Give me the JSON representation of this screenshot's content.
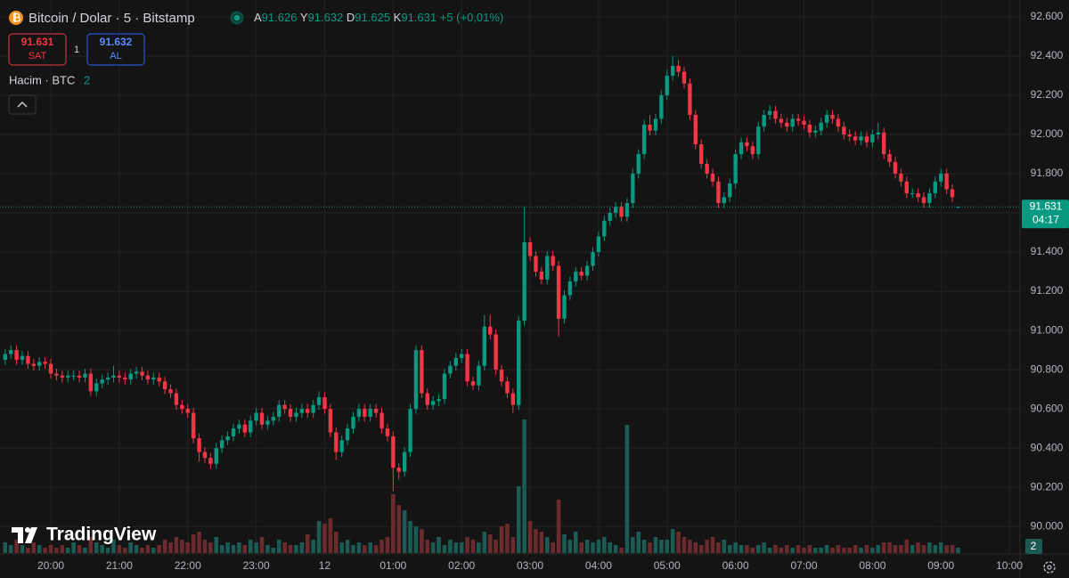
{
  "header": {
    "symbol": "Bitcoin / Dolar · 5 · Bitstamp",
    "ohlc": [
      {
        "key": "A",
        "value": "91.626"
      },
      {
        "key": "Y",
        "value": "91.632"
      },
      {
        "key": "D",
        "value": "91.625"
      },
      {
        "key": "K",
        "value": "91.631"
      }
    ],
    "change": "+5 (+0,01%)"
  },
  "trade": {
    "sell_price": "91.631",
    "sell_label": "SAT",
    "quantity": "1",
    "buy_price": "91.632",
    "buy_label": "AL"
  },
  "volume_label": "Hacim · BTC",
  "logo": "TradingView",
  "chart_data": {
    "type": "candlestick",
    "categories": [
      null,
      null,
      null,
      null,
      null,
      null,
      null,
      null,
      "20:00",
      null,
      null,
      null,
      null,
      null,
      null,
      null,
      null,
      null,
      null,
      null,
      "21:00",
      null,
      null,
      null,
      null,
      null,
      null,
      null,
      null,
      null,
      null,
      null,
      "22:00",
      null,
      null,
      null,
      null,
      null,
      null,
      null,
      null,
      null,
      null,
      null,
      "23:00",
      null,
      null,
      null,
      null,
      null,
      null,
      null,
      null,
      null,
      null,
      null,
      "12",
      null,
      null,
      null,
      null,
      null,
      null,
      null,
      null,
      null,
      null,
      null,
      "01:00",
      null,
      null,
      null,
      null,
      null,
      null,
      null,
      null,
      null,
      null,
      null,
      "02:00",
      null,
      null,
      null,
      null,
      null,
      null,
      null,
      null,
      null,
      null,
      null,
      "03:00",
      null,
      null,
      null,
      null,
      null,
      null,
      null,
      null,
      null,
      null,
      null,
      "04:00",
      null,
      null,
      null,
      null,
      null,
      null,
      null,
      null,
      null,
      null,
      null,
      "05:00",
      null,
      null,
      null,
      null,
      null,
      null,
      null,
      null,
      null,
      null,
      null,
      "06:00",
      null,
      null,
      null,
      null,
      null,
      null,
      null,
      null,
      null,
      null,
      null,
      "07:00",
      null,
      null,
      null,
      null,
      null,
      null,
      null,
      null,
      null,
      null,
      null,
      "08:00",
      null,
      null,
      null,
      null,
      null,
      null,
      null,
      null,
      null,
      null,
      null,
      "09:00",
      null,
      null,
      null,
      null,
      null,
      null,
      null,
      null,
      null,
      null,
      null,
      "10:00"
    ],
    "open": [
      90850,
      90880,
      90900,
      90850,
      90870,
      90830,
      90820,
      90840,
      90830,
      90780,
      90770,
      90760,
      90770,
      90770,
      90760,
      90780,
      90690,
      90730,
      90750,
      90760,
      90770,
      90760,
      90750,
      90780,
      90790,
      90770,
      90750,
      90760,
      90740,
      90700,
      90680,
      90620,
      90600,
      90580,
      90450,
      90380,
      90350,
      90320,
      90400,
      90440,
      90460,
      90500,
      90520,
      90480,
      90540,
      90580,
      90520,
      90540,
      90560,
      90620,
      90600,
      90560,
      90580,
      90600,
      90580,
      90620,
      90660,
      90600,
      90480,
      90380,
      90440,
      90500,
      90560,
      90600,
      90560,
      90600,
      90580,
      90500,
      90460,
      90300,
      90280,
      90380,
      90600,
      90900,
      90680,
      90620,
      90640,
      90650,
      90780,
      90820,
      90860,
      90880,
      90740,
      90720,
      90820,
      91020,
      90980,
      90800,
      90740,
      90680,
      90620,
      91050,
      91450,
      91380,
      91300,
      91260,
      91380,
      91330,
      91060,
      91180,
      91250,
      91300,
      91280,
      91330,
      91400,
      91480,
      91560,
      91600,
      91630,
      91580,
      91650,
      91800,
      91900,
      92050,
      92020,
      92080,
      92200,
      92300,
      92350,
      92320,
      92260,
      92100,
      91950,
      91850,
      91800,
      91760,
      91650,
      91680,
      91750,
      91900,
      91960,
      91940,
      91900,
      92040,
      92100,
      92120,
      92080,
      92060,
      92040,
      92080,
      92070,
      92050,
      92010,
      92020,
      92060,
      92100,
      92080,
      92040,
      92000,
      91990,
      91970,
      91990,
      91960,
      92000,
      92010,
      91900,
      91860,
      91800,
      91760,
      91700,
      91700,
      91680,
      91650,
      91700,
      91760,
      91800,
      91720,
      91626,
      null,
      null,
      null,
      null,
      null,
      null,
      null,
      null,
      null
    ],
    "high": [
      90905,
      90925,
      90925,
      90895,
      90895,
      90855,
      90865,
      90865,
      90855,
      90805,
      90795,
      90795,
      90795,
      90795,
      90805,
      90805,
      90755,
      90775,
      90785,
      90820,
      90795,
      90785,
      90805,
      90815,
      90815,
      90795,
      90785,
      90785,
      90765,
      90725,
      90705,
      90645,
      90625,
      90605,
      90475,
      90405,
      90375,
      90425,
      90465,
      90485,
      90525,
      90545,
      90545,
      90565,
      90605,
      90605,
      90565,
      90585,
      90645,
      90645,
      90625,
      90605,
      90625,
      90625,
      90645,
      90690,
      90685,
      90625,
      90505,
      90465,
      90525,
      90585,
      90625,
      90625,
      90625,
      90625,
      90605,
      90525,
      90485,
      90325,
      90405,
      90625,
      90925,
      90925,
      90705,
      90665,
      90675,
      90805,
      90845,
      90885,
      90905,
      90905,
      90765,
      90845,
      91080,
      91080,
      91005,
      90825,
      90765,
      90705,
      91075,
      91630,
      91475,
      91405,
      91325,
      91405,
      91405,
      91355,
      91205,
      91275,
      91325,
      91325,
      91355,
      91425,
      91505,
      91585,
      91625,
      91655,
      91655,
      91675,
      91825,
      91925,
      92075,
      92100,
      92105,
      92225,
      92330,
      92400,
      92380,
      92345,
      92285,
      92125,
      91975,
      91875,
      91825,
      91785,
      91705,
      91775,
      91925,
      91985,
      91985,
      91965,
      92065,
      92125,
      92150,
      92145,
      92105,
      92085,
      92105,
      92105,
      92095,
      92075,
      92045,
      92085,
      92125,
      92125,
      92105,
      92065,
      92025,
      92015,
      92015,
      92015,
      92025,
      92060,
      92035,
      91925,
      91885,
      91825,
      91785,
      91725,
      91725,
      91705,
      91725,
      91785,
      91825,
      91825,
      91745,
      91632,
      null,
      null,
      null,
      null,
      null,
      null,
      null,
      null,
      null
    ],
    "low": [
      90825,
      90855,
      90825,
      90825,
      90805,
      90795,
      90795,
      90805,
      90755,
      90745,
      90735,
      90735,
      90745,
      90735,
      90735,
      90665,
      90665,
      90705,
      90725,
      90735,
      90735,
      90725,
      90725,
      90755,
      90745,
      90725,
      90725,
      90715,
      90675,
      90655,
      90595,
      90575,
      90555,
      90425,
      90330,
      90325,
      90295,
      90295,
      90375,
      90415,
      90435,
      90475,
      90455,
      90455,
      90515,
      90495,
      90495,
      90515,
      90535,
      90575,
      90535,
      90535,
      90555,
      90555,
      90555,
      90595,
      90575,
      90455,
      90340,
      90355,
      90415,
      90475,
      90535,
      90535,
      90535,
      90555,
      90475,
      90435,
      90180,
      90240,
      90255,
      90355,
      90575,
      90655,
      90595,
      90595,
      90615,
      90625,
      90755,
      90795,
      90835,
      90715,
      90695,
      90695,
      90795,
      90955,
      90775,
      90715,
      90655,
      90580,
      90595,
      91025,
      91355,
      91275,
      91235,
      91235,
      91305,
      90970,
      91035,
      91155,
      91225,
      91255,
      91255,
      91305,
      91375,
      91455,
      91535,
      91575,
      91555,
      91555,
      91625,
      91775,
      91875,
      91995,
      91995,
      92055,
      92175,
      92275,
      92295,
      92235,
      92075,
      91925,
      91825,
      91775,
      91735,
      91625,
      91625,
      91655,
      91725,
      91875,
      91915,
      91875,
      91875,
      92015,
      92075,
      92055,
      92035,
      92015,
      92015,
      92045,
      92025,
      91985,
      91985,
      91995,
      92035,
      92055,
      92015,
      91975,
      91965,
      91945,
      91945,
      91935,
      91935,
      91975,
      91875,
      91835,
      91775,
      91735,
      91675,
      91675,
      91655,
      91625,
      91625,
      91675,
      91735,
      91695,
      91655,
      91625,
      null,
      null,
      null,
      null,
      null,
      null,
      null,
      null,
      null
    ],
    "close": [
      90880,
      90900,
      90850,
      90870,
      90830,
      90820,
      90840,
      90830,
      90780,
      90770,
      90760,
      90770,
      90770,
      90760,
      90780,
      90690,
      90730,
      90750,
      90760,
      90770,
      90760,
      90750,
      90780,
      90790,
      90770,
      90750,
      90760,
      90740,
      90700,
      90680,
      90620,
      90600,
      90580,
      90450,
      90380,
      90350,
      90320,
      90400,
      90440,
      90460,
      90500,
      90520,
      90480,
      90540,
      90580,
      90520,
      90540,
      90560,
      90620,
      90600,
      90560,
      90580,
      90600,
      90580,
      90620,
      90660,
      90600,
      90480,
      90380,
      90440,
      90500,
      90560,
      90600,
      90560,
      90600,
      90580,
      90500,
      90460,
      90300,
      90280,
      90380,
      90600,
      90900,
      90680,
      90620,
      90640,
      90650,
      90780,
      90820,
      90860,
      90880,
      90740,
      90720,
      90820,
      91020,
      90980,
      90800,
      90740,
      90680,
      90620,
      91050,
      91450,
      91380,
      91300,
      91260,
      91380,
      91330,
      91060,
      91180,
      91250,
      91300,
      91280,
      91330,
      91400,
      91480,
      91560,
      91600,
      91630,
      91580,
      91650,
      91800,
      91900,
      92050,
      92020,
      92080,
      92200,
      92300,
      92350,
      92320,
      92260,
      92100,
      91950,
      91850,
      91800,
      91760,
      91650,
      91680,
      91750,
      91900,
      91960,
      91940,
      91900,
      92040,
      92100,
      92120,
      92080,
      92060,
      92040,
      92080,
      92070,
      92050,
      92010,
      92020,
      92060,
      92100,
      92080,
      92040,
      92000,
      91990,
      91970,
      91990,
      91960,
      92000,
      92010,
      91900,
      91860,
      91800,
      91760,
      91700,
      91700,
      91680,
      91650,
      91700,
      91760,
      91800,
      91720,
      91680,
      91631,
      null,
      null,
      null,
      null,
      null,
      null,
      null,
      null,
      null
    ],
    "volume": [
      4,
      3,
      5,
      3,
      2,
      4,
      3,
      2,
      3,
      2,
      3,
      2,
      4,
      3,
      2,
      6,
      4,
      3,
      2,
      5,
      3,
      2,
      4,
      3,
      2,
      3,
      2,
      3,
      5,
      4,
      6,
      5,
      4,
      7,
      8,
      5,
      4,
      6,
      3,
      4,
      3,
      4,
      3,
      5,
      4,
      6,
      3,
      2,
      5,
      4,
      3,
      3,
      4,
      7,
      5,
      12,
      11,
      13,
      8,
      4,
      5,
      3,
      4,
      3,
      4,
      3,
      5,
      6,
      22,
      18,
      16,
      12,
      10,
      9,
      5,
      4,
      6,
      3,
      5,
      4,
      4,
      6,
      5,
      4,
      8,
      7,
      5,
      10,
      11,
      6,
      25,
      50,
      12,
      9,
      8,
      6,
      4,
      20,
      7,
      5,
      8,
      4,
      5,
      4,
      5,
      6,
      4,
      3,
      2,
      48,
      6,
      8,
      5,
      4,
      6,
      5,
      5,
      9,
      8,
      6,
      5,
      4,
      3,
      5,
      6,
      4,
      5,
      3,
      4,
      3,
      3,
      2,
      3,
      4,
      2,
      3,
      2,
      3,
      2,
      3,
      2,
      3,
      2,
      2,
      3,
      2,
      3,
      2,
      2,
      3,
      2,
      3,
      2,
      3,
      4,
      4,
      3,
      3,
      5,
      3,
      4,
      3,
      4,
      3,
      4,
      3,
      3,
      2,
      null,
      null,
      null,
      null,
      null,
      null,
      null,
      null,
      null
    ],
    "up_color": "#089981",
    "down_color": "#f23645",
    "volume_up_color": "#1c5a54",
    "volume_down_color": "#6b2a2e",
    "ylim": [
      89860,
      92686
    ],
    "yticks": [
      {
        "value": 90000,
        "label": "90.000"
      },
      {
        "value": 90200,
        "label": "90.200"
      },
      {
        "value": 90400,
        "label": "90.400"
      },
      {
        "value": 90600,
        "label": "90.600"
      },
      {
        "value": 90800,
        "label": "90.800"
      },
      {
        "value": 91000,
        "label": "91.000"
      },
      {
        "value": 91200,
        "label": "91.200"
      },
      {
        "value": 91400,
        "label": "91.400"
      },
      {
        "value": 91600,
        "label": "91.600"
      },
      {
        "value": 91800,
        "label": "91.800"
      },
      {
        "value": 92000,
        "label": "92.000"
      },
      {
        "value": 92200,
        "label": "92.200"
      },
      {
        "value": 92400,
        "label": "92.400"
      },
      {
        "value": 92600,
        "label": "92.600"
      }
    ],
    "grid": true,
    "last_price": {
      "value": 91631,
      "label": "91.631"
    },
    "countdown": "04:17"
  }
}
